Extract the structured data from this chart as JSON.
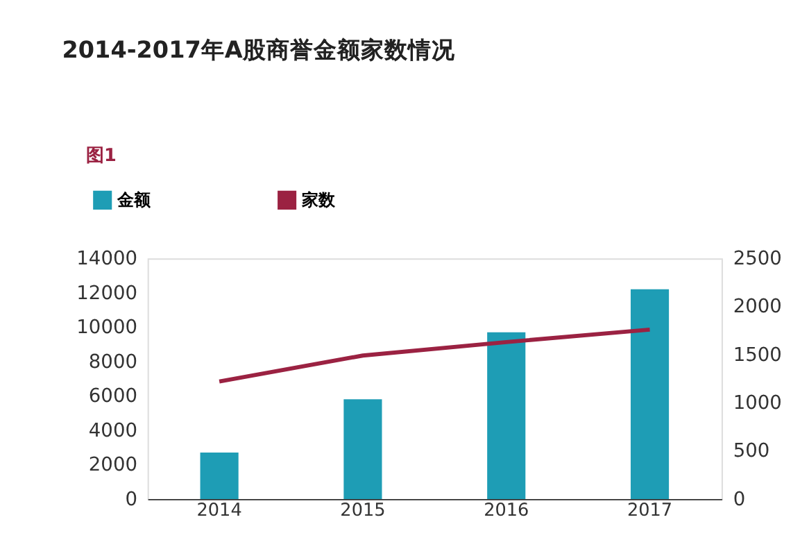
{
  "chart_data": {
    "type": "bar",
    "title": "2014-2017年A股商誉金额家数情况",
    "annotations": [
      "图1"
    ],
    "categories": [
      "2014",
      "2015",
      "2016",
      "2017"
    ],
    "series": [
      {
        "name": "金额",
        "color": "#1e9db5",
        "values": [
          2700,
          5800,
          9700,
          12200
        ]
      },
      {
        "name": "家数",
        "type": "line",
        "axis": "y2",
        "color": "#9b2242",
        "values": [
          1220,
          1490,
          1630,
          1760
        ]
      }
    ],
    "ylim": [
      0,
      14000
    ],
    "yticks": [
      0,
      2000,
      4000,
      6000,
      8000,
      10000,
      12000,
      14000
    ],
    "y2lim": [
      0,
      2500
    ],
    "y2ticks": [
      0,
      500,
      1000,
      1500,
      2000,
      2500
    ],
    "grid": false,
    "legend": "top left",
    "line_style": "solid",
    "marker": "none"
  }
}
